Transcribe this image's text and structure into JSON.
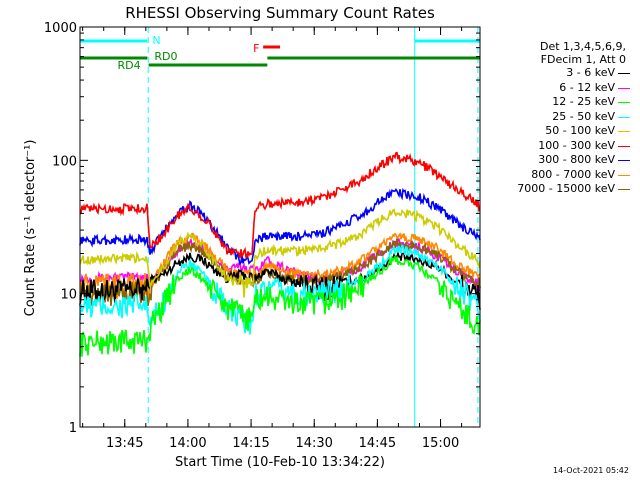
{
  "chart_data": {
    "type": "line",
    "title": "RHESSI Observing Summary Count Rates",
    "xlabel": "Start Time (10-Feb-10 13:34:22)",
    "ylabel": "Count Rate (s⁻¹ detector⁻¹)",
    "x_unit": "minutes after 13:34:22",
    "xlim": [
      0,
      95
    ],
    "ylim": [
      1,
      1000
    ],
    "yscale": "log",
    "x_ticks": [
      {
        "label": "13:45",
        "value": 10.63
      },
      {
        "label": "14:00",
        "value": 25.63
      },
      {
        "label": "14:15",
        "value": 40.63
      },
      {
        "label": "14:30",
        "value": 55.63
      },
      {
        "label": "14:45",
        "value": 70.63
      },
      {
        "label": "15:00",
        "value": 85.63
      }
    ],
    "y_ticks": [
      {
        "label": "1",
        "value": 1
      },
      {
        "label": "10",
        "value": 10
      },
      {
        "label": "100",
        "value": 100
      },
      {
        "label": "1000",
        "value": 1000
      }
    ],
    "legend_header": [
      "Det 1,3,4,5,6,9,",
      "FDecim 1, Att 0"
    ],
    "series": [
      {
        "name": "3 - 6 keV",
        "color": "#000000",
        "x": [
          0,
          16,
          16.5,
          20,
          23,
          26,
          29,
          32,
          35,
          38,
          42,
          44,
          48,
          52,
          57,
          62,
          67,
          71,
          75,
          80,
          85,
          89,
          95
        ],
        "y": [
          10.5,
          10.8,
          12.5,
          14,
          17,
          19,
          18,
          15,
          13,
          14,
          13,
          15,
          13,
          12,
          11,
          12,
          13,
          15.5,
          19,
          18,
          16,
          12.5,
          9.5
        ]
      },
      {
        "name": "6 - 12 keV",
        "color": "#ff00ff",
        "x": [
          0,
          16,
          16.5,
          20,
          23,
          26,
          29,
          32,
          35,
          38,
          42,
          44,
          48,
          52,
          57,
          62,
          67,
          71,
          75,
          80,
          85,
          89,
          95
        ],
        "y": [
          13,
          13.5,
          12.5,
          16,
          21,
          24,
          22,
          18,
          15,
          16,
          15,
          18,
          16,
          14,
          13,
          14,
          16,
          20,
          24,
          23,
          19,
          15,
          11.5
        ]
      },
      {
        "name": "12 - 25 keV",
        "color": "#00ff00",
        "x": [
          0,
          16,
          16.5,
          20,
          23,
          26,
          29,
          32,
          35,
          38,
          41,
          41.5,
          44,
          48,
          52,
          57,
          62,
          67,
          71,
          75,
          80,
          85,
          89,
          95
        ],
        "y": [
          4.3,
          4.5,
          5.5,
          8.5,
          13,
          15,
          13,
          10,
          8,
          7,
          6.5,
          9,
          9.5,
          9,
          8.5,
          8.5,
          9.5,
          11.5,
          14.5,
          18,
          16,
          12,
          8.5,
          5.5
        ]
      },
      {
        "name": "25 - 50 keV",
        "color": "#00ffff",
        "x": [
          0,
          16,
          16.5,
          20,
          23,
          26,
          29,
          32,
          35,
          38,
          41,
          41.5,
          44,
          48,
          52,
          57,
          62,
          67,
          71,
          75,
          80,
          85,
          89,
          95
        ],
        "y": [
          8,
          8.2,
          5.5,
          9,
          14,
          17,
          14,
          10.5,
          7.5,
          6.5,
          6,
          10,
          11,
          10.5,
          10,
          10,
          11,
          13,
          16,
          22,
          20,
          16,
          12,
          7.5
        ]
      },
      {
        "name": "50 - 100 keV",
        "color": "#cccc00",
        "x": [
          0,
          16,
          16.5,
          20,
          23,
          26,
          29,
          32,
          35,
          38,
          41,
          41.5,
          44,
          48,
          52,
          57,
          62,
          67,
          71,
          75,
          80,
          85,
          89,
          95
        ],
        "y": [
          18,
          18.5,
          12,
          16,
          23,
          27,
          23,
          17,
          13,
          12,
          11.5,
          19,
          21,
          21,
          21,
          22,
          24,
          28,
          35,
          42,
          38,
          31,
          24,
          17
        ]
      },
      {
        "name": "100 - 300 keV",
        "color": "#ff0000",
        "x": [
          0,
          16,
          16.5,
          20,
          23,
          26,
          29,
          32,
          35,
          38,
          41,
          41.5,
          44,
          48,
          52,
          57,
          62,
          67,
          71,
          75,
          80,
          85,
          89,
          95
        ],
        "y": [
          43,
          44,
          22,
          28,
          38,
          44,
          38,
          29,
          21,
          20,
          20,
          45,
          47,
          48,
          49,
          52,
          60,
          72,
          90,
          107,
          98,
          78,
          62,
          45
        ]
      },
      {
        "name": "300 - 800 keV",
        "color": "#0000ff",
        "x": [
          0,
          16,
          16.5,
          20,
          23,
          26,
          29,
          32,
          35,
          38,
          41,
          41.5,
          44,
          48,
          52,
          57,
          62,
          67,
          71,
          75,
          80,
          85,
          89,
          95
        ],
        "y": [
          25,
          25.5,
          20,
          29,
          40,
          46,
          40,
          30,
          22,
          18,
          18,
          25,
          27,
          27,
          27,
          28,
          32,
          39,
          49,
          58,
          54,
          44,
          35,
          25
        ]
      },
      {
        "name": "800 - 7000 keV",
        "color": "#ff8800",
        "x": [
          0,
          16,
          16.5,
          20,
          23,
          26,
          29,
          32,
          35,
          38,
          42,
          44,
          48,
          52,
          57,
          62,
          67,
          71,
          75,
          80,
          85,
          89,
          95
        ],
        "y": [
          11.5,
          11.8,
          11,
          17,
          24,
          27,
          24,
          19,
          15,
          14,
          14,
          16,
          15,
          14,
          14,
          15,
          18,
          22,
          27,
          26,
          22,
          17,
          13
        ]
      },
      {
        "name": "7000 - 15000 keV",
        "color": "#886600",
        "x": [
          0,
          16,
          16.5,
          20,
          23,
          26,
          29,
          32,
          35,
          38,
          42,
          44,
          48,
          52,
          57,
          62,
          67,
          71,
          75,
          80,
          85,
          89,
          95
        ],
        "y": [
          10.2,
          10.4,
          10.2,
          15,
          21,
          23,
          21,
          17,
          13.5,
          12.5,
          12.5,
          14,
          13.5,
          12.5,
          12.5,
          13.5,
          16,
          19.5,
          24,
          23,
          19.5,
          15,
          11.5
        ]
      }
    ],
    "annotations": [
      {
        "text": "N",
        "color": "#00ffff",
        "segments": [
          [
            0,
            16
          ],
          [
            79.5,
            95
          ]
        ]
      },
      {
        "text": "F",
        "color": "#ff0000",
        "segments": [
          [
            43.5,
            47.5
          ]
        ]
      },
      {
        "text": "RD0",
        "color": "#008800",
        "segments": [
          [
            0,
            16
          ],
          [
            44.5,
            95
          ]
        ]
      },
      {
        "text": "RD4",
        "color": "#008800",
        "segments": [
          [
            16.3,
            44.5
          ]
        ]
      }
    ],
    "vlines": [
      {
        "x": 16.2,
        "color": "#00ffff",
        "style": "dashed"
      },
      {
        "x": 79.5,
        "color": "#00ffff",
        "style": "solid"
      },
      {
        "x": 94.5,
        "color": "#00ffff",
        "style": "dashed"
      }
    ]
  },
  "timestamp": "14-Oct-2021 05:42"
}
